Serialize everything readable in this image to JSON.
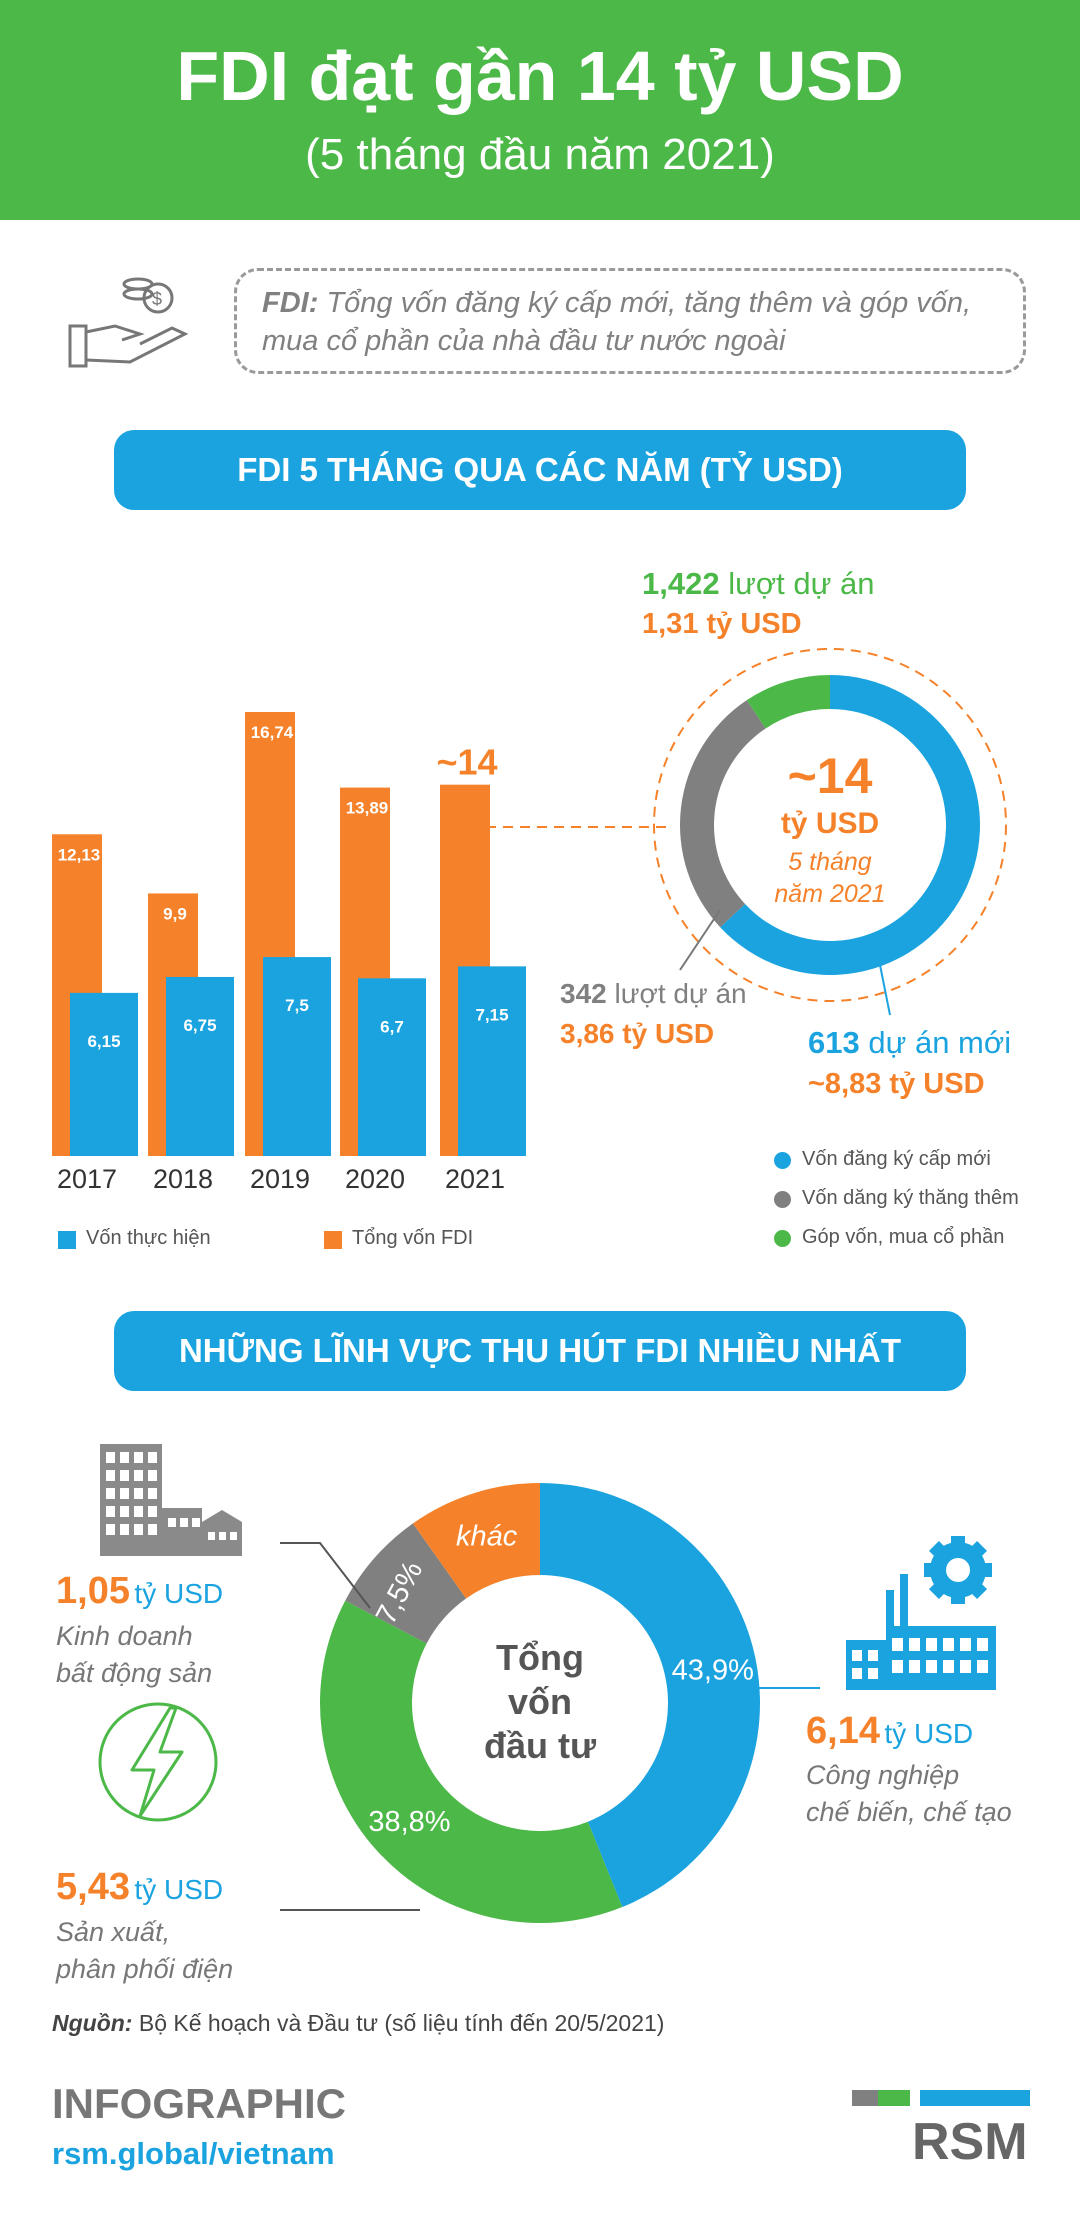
{
  "header": {
    "title": "FDI đạt gần 14 tỷ USD",
    "subtitle": "(5 tháng đầu năm 2021)"
  },
  "definition": {
    "term": "FDI:",
    "text": "Tổng vốn đăng ký cấp mới, tăng thêm và góp vốn, mua cổ phần của nhà đầu tư nước ngoài"
  },
  "section1": {
    "title": "FDI 5 THÁNG QUA CÁC NĂM (TỶ USD)"
  },
  "section2": {
    "title": "NHỮNG LĨNH VỰC THU HÚT FDI NHIỀU NHẤT"
  },
  "colors": {
    "green": "#4cb848",
    "blue": "#1aa3df",
    "orange": "#f5822a",
    "grey": "#808080"
  },
  "chart_data": [
    {
      "type": "bar",
      "categories": [
        "2017",
        "2018",
        "2019",
        "2020",
        "2021"
      ],
      "series": [
        {
          "name": "Vốn thực hiện",
          "values": [
            6.15,
            6.75,
            7.5,
            6.7,
            7.15
          ],
          "labels": [
            "6,15",
            "6,75",
            "7,5",
            "6,7",
            "7,15"
          ],
          "color": "#1aa3df"
        },
        {
          "name": "Tổng vốn FDI",
          "values": [
            12.13,
            9.9,
            16.74,
            13.89,
            14
          ],
          "labels": [
            "12,13",
            "9,9",
            "16,74",
            "13,89",
            "~14"
          ],
          "color": "#f5822a"
        }
      ],
      "ylim": [
        0,
        16.74
      ]
    },
    {
      "type": "pie",
      "variant": "donut",
      "center": {
        "value": "~14",
        "unit": "tỷ USD",
        "line1": "5 tháng",
        "line2": "năm 2021"
      },
      "slices": [
        {
          "name": "Vốn đăng ký cấp mới",
          "value": 8.83,
          "color": "#1aa3df"
        },
        {
          "name": "Vốn dăng ký thăng thêm",
          "value": 3.86,
          "color": "#808080"
        },
        {
          "name": "Góp vốn, mua cổ phần",
          "value": 1.31,
          "color": "#4cb848"
        }
      ],
      "callouts": {
        "green": {
          "count": "1,422",
          "count_text": "lượt dự án",
          "amount": "1,31 tỷ USD"
        },
        "grey": {
          "count": "342",
          "count_text": "lượt dự án",
          "amount": "3,86 tỷ USD"
        },
        "blue": {
          "count": "613",
          "count_text": "dự án mới",
          "amount": "~8,83 tỷ USD"
        }
      }
    },
    {
      "type": "pie",
      "variant": "donut",
      "center_text": [
        "Tổng",
        "vốn",
        "đầu tư"
      ],
      "slices": [
        {
          "label": "43,9%",
          "value": 43.9,
          "color": "#1aa3df"
        },
        {
          "label": "38,8%",
          "value": 38.8,
          "color": "#4cb848"
        },
        {
          "label": "7,5%",
          "value": 7.5,
          "color": "#808080"
        },
        {
          "label": "khác",
          "value": 9.8,
          "color": "#f5822a"
        }
      ]
    }
  ],
  "sectors": {
    "realestate": {
      "amount": "1,05",
      "unit": "tỷ USD",
      "line1": "Kinh doanh",
      "line2": "bất động sản"
    },
    "power": {
      "amount": "5,43",
      "unit": "tỷ USD",
      "line1": "Sản xuất,",
      "line2": "phân phối điện"
    },
    "industry": {
      "amount": "6,14",
      "unit": "tỷ USD",
      "line1": "Công nghiệp",
      "line2": "chế biến, chế tạo"
    }
  },
  "source": {
    "label": "Nguồn:",
    "text": "Bộ Kế hoạch và Đầu tư (số liệu tính đến 20/5/2021)"
  },
  "footer": {
    "title": "INFOGRAPHIC",
    "url": "rsm.global/vietnam",
    "brand": "RSM"
  }
}
